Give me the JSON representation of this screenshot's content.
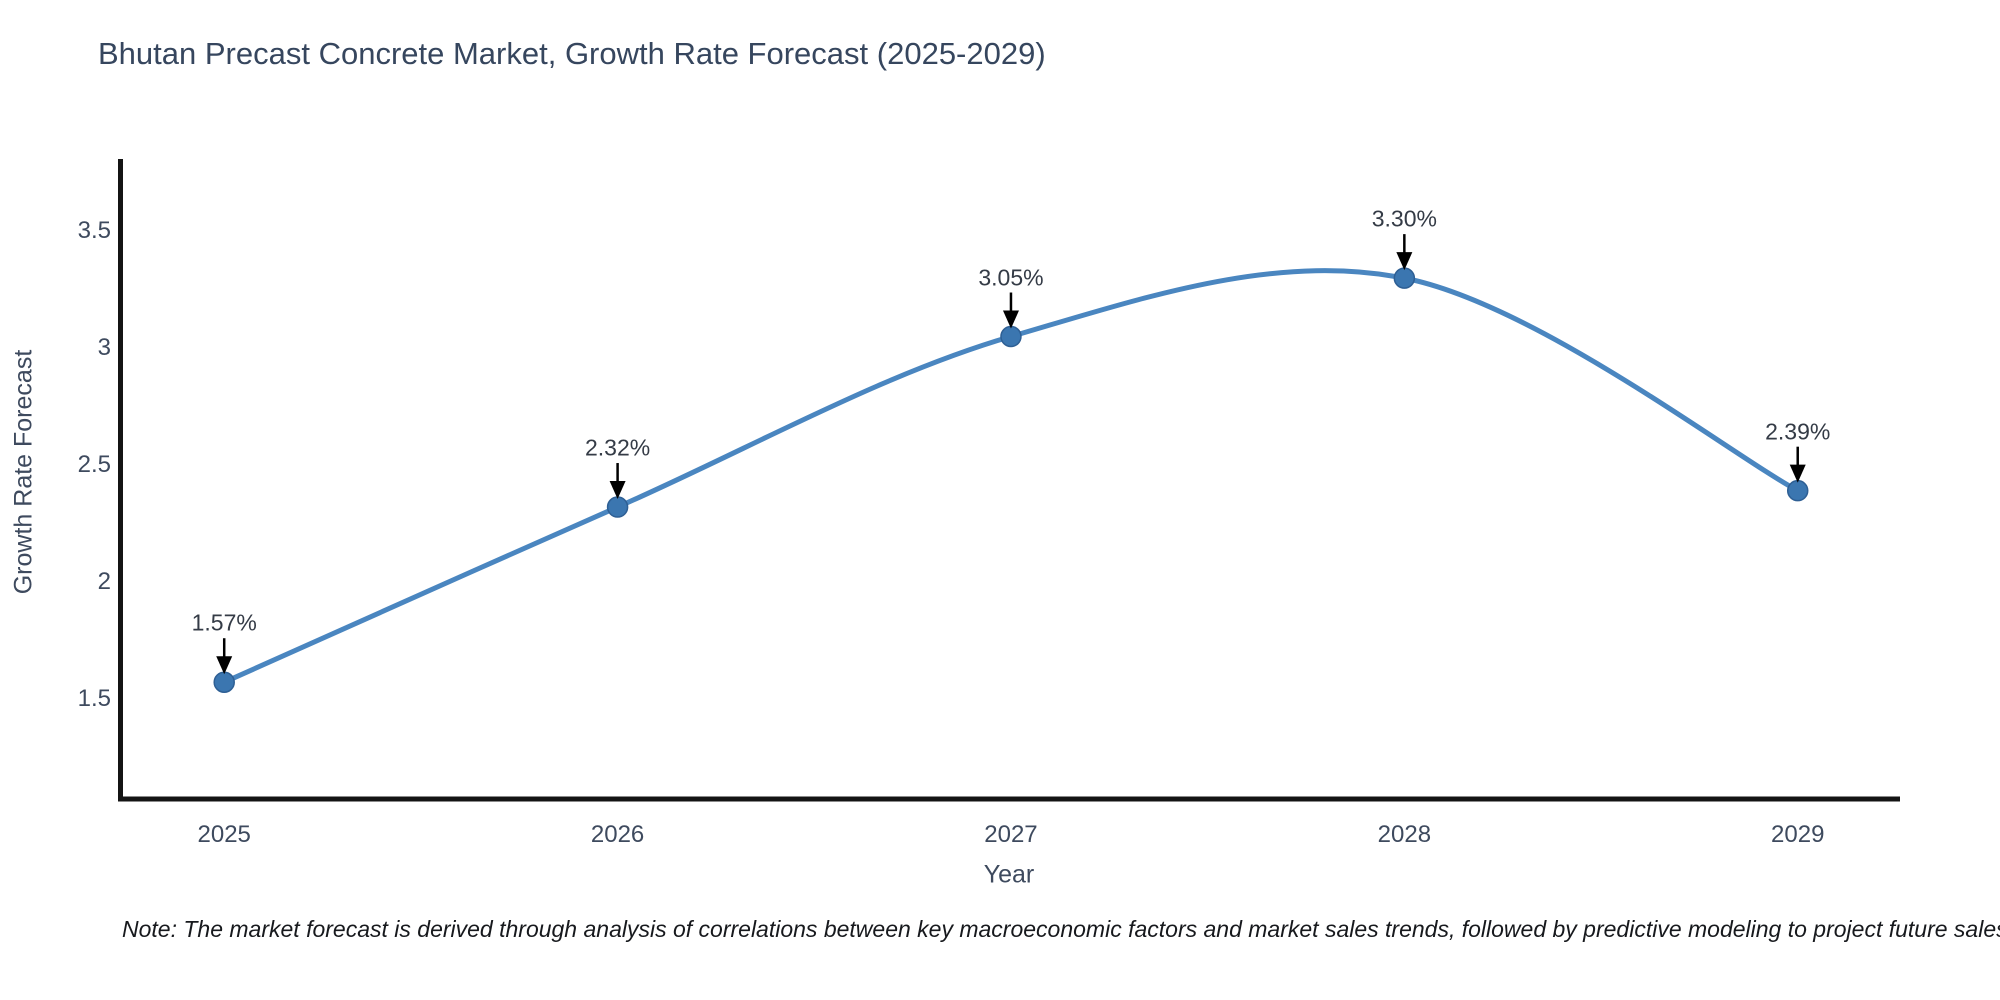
{
  "chart": {
    "title": "Bhutan Precast Concrete Market, Growth Rate Forecast (2025-2029)",
    "xlabel": "Year",
    "ylabel": "Growth Rate Forecast",
    "note": "Note: The market forecast is derived through analysis of correlations between key macroeconomic factors and market sales trends, followed by predictive modeling to project future sales."
  },
  "chart_data": {
    "type": "line",
    "title": "Bhutan Precast Concrete Market, Growth Rate Forecast (2025-2029)",
    "xlabel": "Year",
    "ylabel": "Growth Rate Forecast",
    "x": [
      2025,
      2026,
      2027,
      2028,
      2029
    ],
    "values": [
      1.57,
      2.32,
      3.05,
      3.3,
      2.39
    ],
    "point_labels": [
      "1.57%",
      "2.32%",
      "3.05%",
      "3.30%",
      "2.39%"
    ],
    "x_tick_labels": [
      "2025",
      "2026",
      "2027",
      "2028",
      "2029"
    ],
    "yticks": [
      1.5,
      2,
      2.5,
      3,
      3.5
    ],
    "ytick_labels": [
      "1.5",
      "2",
      "2.5",
      "3",
      "3.5"
    ],
    "xlim": [
      2024.73,
      2029.26
    ],
    "ylim": [
      1.07,
      3.81
    ],
    "grid": false,
    "legend": "none",
    "line_shape": "spline",
    "annotations": "black arrows pointing down to each data point",
    "note": "Note: The market forecast is derived through analysis of correlations between key macroeconomic factors and market sales trends, followed by predictive modeling to project future sales.",
    "colors": {
      "line": "#4a86c0",
      "marker": "#3b76b0",
      "marker_edge": "#2e5f94",
      "axis": "#141414",
      "arrow": "#000000",
      "tick_text": "#3e4a5e",
      "annotation_text": "#343b46",
      "title_text": "#36465e",
      "note_text": "#17191d",
      "background": "#ffffff"
    }
  }
}
